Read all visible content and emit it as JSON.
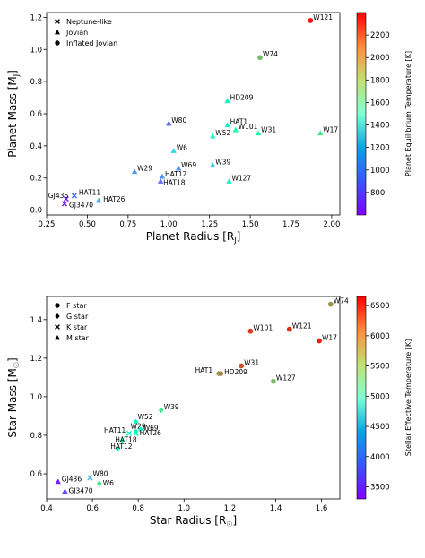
{
  "chart_data": [
    {
      "type": "scatter",
      "xlabel": "Planet Radius [R",
      "xlabel_sub": "J",
      "xlabel_end": "]",
      "ylabel": "Planet Mass [M",
      "ylabel_sub": "J",
      "ylabel_end": "]",
      "xlim": [
        0.25,
        2.05
      ],
      "ylim": [
        -0.03,
        1.23
      ],
      "xticks": [
        "0.25",
        "0.50",
        "0.75",
        "1.00",
        "1.25",
        "1.50",
        "1.75",
        "2.00"
      ],
      "yticks": [
        "0.0",
        "0.2",
        "0.4",
        "0.6",
        "0.8",
        "1.0",
        "1.2"
      ],
      "legend": {
        "placement": "top-left",
        "entries": [
          {
            "marker": "x",
            "label": "Neptune-like"
          },
          {
            "marker": "triangle",
            "label": "Jovian"
          },
          {
            "marker": "circle",
            "label": "Inflated Jovian"
          }
        ]
      },
      "colorbar": {
        "label": "Planet Equilibrium Temperature [K]",
        "range": [
          600,
          2400
        ],
        "ticks": [
          "800",
          "1000",
          "1200",
          "1400",
          "1600",
          "1800",
          "2000",
          "2200"
        ],
        "colormap": "rainbow"
      },
      "points": [
        {
          "label": "W121",
          "x": 1.87,
          "y": 1.18,
          "marker": "circle",
          "c": 2350
        },
        {
          "label": "W74",
          "x": 1.56,
          "y": 0.95,
          "marker": "circle",
          "c": 1920
        },
        {
          "label": "HD209",
          "x": 1.36,
          "y": 0.68,
          "marker": "triangle",
          "c": 1450
        },
        {
          "label": "W80",
          "x": 1.0,
          "y": 0.54,
          "marker": "triangle",
          "c": 825
        },
        {
          "label": "HAT1",
          "x": 1.36,
          "y": 0.53,
          "marker": "triangle",
          "c": 1320
        },
        {
          "label": "W101",
          "x": 1.41,
          "y": 0.5,
          "marker": "triangle",
          "c": 1560
        },
        {
          "label": "W31",
          "x": 1.55,
          "y": 0.48,
          "marker": "triangle",
          "c": 1580
        },
        {
          "label": "W17",
          "x": 1.93,
          "y": 0.48,
          "marker": "triangle",
          "c": 1740
        },
        {
          "label": "W52",
          "x": 1.27,
          "y": 0.46,
          "marker": "triangle",
          "c": 1315
        },
        {
          "label": "W6",
          "x": 1.03,
          "y": 0.37,
          "marker": "triangle",
          "c": 1190
        },
        {
          "label": "W39",
          "x": 1.27,
          "y": 0.28,
          "marker": "triangle",
          "c": 1120
        },
        {
          "label": "W69",
          "x": 1.06,
          "y": 0.26,
          "marker": "triangle",
          "c": 960
        },
        {
          "label": "W29",
          "x": 0.79,
          "y": 0.24,
          "marker": "triangle",
          "c": 970
        },
        {
          "label": "HAT12",
          "x": 0.96,
          "y": 0.21,
          "marker": "triangle",
          "c": 960
        },
        {
          "label": "HAT18",
          "x": 0.95,
          "y": 0.18,
          "marker": "triangle",
          "c": 850
        },
        {
          "label": "W127",
          "x": 1.37,
          "y": 0.18,
          "marker": "triangle",
          "c": 1400
        },
        {
          "label": "HAT11",
          "x": 0.42,
          "y": 0.09,
          "marker": "x",
          "c": 860
        },
        {
          "label": "GJ436",
          "x": 0.37,
          "y": 0.07,
          "marker": "x",
          "c": 690
        },
        {
          "label": "HAT26",
          "x": 0.57,
          "y": 0.06,
          "marker": "triangle",
          "c": 1000
        },
        {
          "label": "GJ3470",
          "x": 0.36,
          "y": 0.04,
          "marker": "x",
          "c": 650
        }
      ]
    },
    {
      "type": "scatter",
      "xlabel": "Star Radius [R",
      "xlabel_sub": "☉",
      "xlabel_end": "]",
      "ylabel": "Star Mass [M",
      "ylabel_sub": "☉",
      "ylabel_end": "]",
      "xlim": [
        0.4,
        1.68
      ],
      "ylim": [
        0.47,
        1.52
      ],
      "xticks": [
        "0.4",
        "0.6",
        "0.8",
        "1.0",
        "1.2",
        "1.4",
        "1.6"
      ],
      "yticks": [
        "0.6",
        "0.8",
        "1.0",
        "1.2",
        "1.4"
      ],
      "legend": {
        "placement": "top-left",
        "entries": [
          {
            "marker": "circle",
            "label": "F star"
          },
          {
            "marker": "diamond",
            "label": "G star"
          },
          {
            "marker": "x",
            "label": "K star"
          },
          {
            "marker": "triangle",
            "label": "M star"
          }
        ]
      },
      "colorbar": {
        "label": "Stellar Effective Temperature [K]",
        "range": [
          3300,
          6650
        ],
        "ticks": [
          "3500",
          "4000",
          "4500",
          "5000",
          "5500",
          "6000",
          "6500"
        ],
        "colormap": "rainbow"
      },
      "points": [
        {
          "label": "W74",
          "x": 1.64,
          "y": 1.48,
          "marker": "circle",
          "c": 5990
        },
        {
          "label": "W101",
          "x": 1.29,
          "y": 1.34,
          "marker": "circle",
          "c": 6400
        },
        {
          "label": "W121",
          "x": 1.46,
          "y": 1.35,
          "marker": "circle",
          "c": 6460
        },
        {
          "label": "W17",
          "x": 1.59,
          "y": 1.29,
          "marker": "circle",
          "c": 6550
        },
        {
          "label": "W31",
          "x": 1.25,
          "y": 1.16,
          "marker": "circle",
          "c": 6300
        },
        {
          "label": "HAT1",
          "x": 1.15,
          "y": 1.12,
          "marker": "diamond",
          "c": 5950
        },
        {
          "label": "HD209",
          "x": 1.16,
          "y": 1.12,
          "marker": "circle",
          "c": 6070
        },
        {
          "label": "W127",
          "x": 1.39,
          "y": 1.08,
          "marker": "circle",
          "c": 5750
        },
        {
          "label": "W39",
          "x": 0.9,
          "y": 0.93,
          "marker": "diamond",
          "c": 5400
        },
        {
          "label": "W52",
          "x": 0.79,
          "y": 0.87,
          "marker": "diamond",
          "c": 5000
        },
        {
          "label": "W29",
          "x": 0.79,
          "y": 0.82,
          "marker": "diamond",
          "c": 4800
        },
        {
          "label": "W69",
          "x": 0.81,
          "y": 0.83,
          "marker": "diamond",
          "c": 4700
        },
        {
          "label": "HAT26",
          "x": 0.79,
          "y": 0.81,
          "marker": "x",
          "c": 5000
        },
        {
          "label": "HAT11",
          "x": 0.76,
          "y": 0.81,
          "marker": "x",
          "c": 4800
        },
        {
          "label": "HAT18",
          "x": 0.73,
          "y": 0.77,
          "marker": "diamond",
          "c": 4950
        },
        {
          "label": "HAT12",
          "x": 0.71,
          "y": 0.73,
          "marker": "diamond",
          "c": 4650
        },
        {
          "label": "W80",
          "x": 0.59,
          "y": 0.58,
          "marker": "x",
          "c": 4150
        },
        {
          "label": "GJ436",
          "x": 0.45,
          "y": 0.56,
          "marker": "triangle",
          "c": 3450
        },
        {
          "label": "W6",
          "x": 0.63,
          "y": 0.55,
          "marker": "diamond",
          "c": 5400
        },
        {
          "label": "GJ3470",
          "x": 0.48,
          "y": 0.51,
          "marker": "triangle",
          "c": 3600
        }
      ]
    }
  ]
}
